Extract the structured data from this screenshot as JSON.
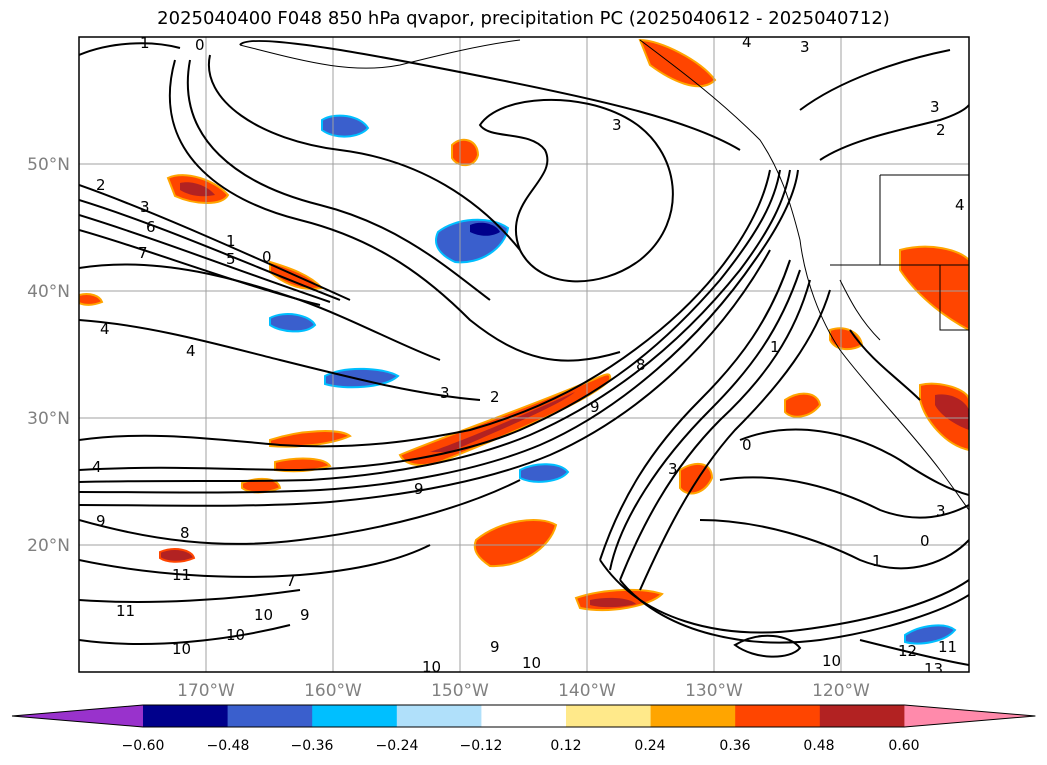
{
  "title": "2025040400 F048 850 hPa qvapor, precipitation PC (2025040612 - 2025040712)",
  "map": {
    "lon_labels": [
      "170°W",
      "160°W",
      "150°W",
      "140°W",
      "130°W",
      "120°W"
    ],
    "lat_labels": [
      "50°N",
      "40°N",
      "30°N",
      "20°N"
    ],
    "grid": true,
    "contour_labels": [
      "1",
      "0",
      "4",
      "3",
      "3",
      "2",
      "3",
      "2",
      "4",
      "3",
      "6",
      "7",
      "1",
      "0",
      "5",
      "4",
      "4",
      "3",
      "2",
      "9",
      "8",
      "1",
      "0",
      "3",
      "4",
      "9",
      "9",
      "8",
      "11",
      "7",
      "10",
      "10",
      "9",
      "9",
      "11",
      "10",
      "10",
      "10",
      "10",
      "12",
      "11",
      "13",
      "0",
      "1",
      "3"
    ]
  },
  "colorbar": {
    "ticks": [
      "−0.60",
      "−0.48",
      "−0.36",
      "−0.24",
      "−0.12",
      "0.12",
      "0.24",
      "0.36",
      "0.48",
      "0.60"
    ],
    "colors": [
      "#9932cc",
      "#00008b",
      "#3a5fcd",
      "#00bfff",
      "#b0e0fa",
      "#ffffff",
      "#ffe98a",
      "#ffa500",
      "#ff4500",
      "#b22222",
      "#ff8aab"
    ],
    "extend": "both"
  },
  "colors": {
    "contour": "#000000",
    "grid": "#a0a0a0",
    "coast": "#000000"
  }
}
